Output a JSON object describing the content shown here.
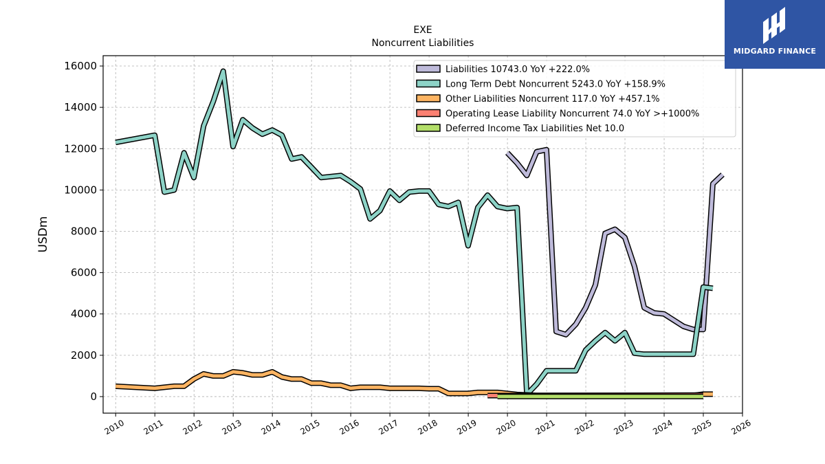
{
  "chart_data": {
    "type": "line",
    "title": "EXE",
    "subtitle": "Noncurrent  Liabilities",
    "ylabel": "USDm",
    "xlabel": "",
    "xlim": [
      2009.68,
      2026.0
    ],
    "ylim": [
      -800,
      16500
    ],
    "x_ticks": [
      "2010",
      "2011",
      "2012",
      "2013",
      "2014",
      "2015",
      "2016",
      "2017",
      "2018",
      "2019",
      "2020",
      "2021",
      "2022",
      "2023",
      "2024",
      "2025",
      "2026"
    ],
    "y_ticks": [
      "0",
      "2000",
      "4000",
      "6000",
      "8000",
      "10000",
      "12000",
      "14000",
      "16000"
    ],
    "grid": true,
    "legend_position": "top-right",
    "series": [
      {
        "name": "Liabilities",
        "legend": "Liabilities  10743.0 YoY +222.0%",
        "color": "#bebada",
        "points": [
          [
            "2019-12-31",
            11800
          ],
          [
            "2020-03-31",
            11300
          ],
          [
            "2020-06-30",
            10700
          ],
          [
            "2020-09-30",
            11850
          ],
          [
            "2020-12-31",
            11950
          ],
          [
            "2021-03-31",
            3150
          ],
          [
            "2021-06-30",
            3000
          ],
          [
            "2021-09-30",
            3500
          ],
          [
            "2021-12-31",
            4300
          ],
          [
            "2022-03-31",
            5400
          ],
          [
            "2022-06-30",
            7900
          ],
          [
            "2022-09-30",
            8100
          ],
          [
            "2022-12-31",
            7700
          ],
          [
            "2023-03-31",
            6300
          ],
          [
            "2023-06-30",
            4300
          ],
          [
            "2023-09-30",
            4050
          ],
          [
            "2023-12-31",
            4000
          ],
          [
            "2024-03-31",
            3700
          ],
          [
            "2024-06-30",
            3400
          ],
          [
            "2024-09-30",
            3250
          ],
          [
            "2024-12-31",
            3250
          ],
          [
            "2025-03-31",
            10300
          ],
          [
            "2025-06-30",
            10743
          ]
        ]
      },
      {
        "name": "Long Term Debt Noncurrent",
        "legend": "Long Term Debt Noncurrent  5243.0 YoY +158.9%",
        "color": "#8dd3c7",
        "points": [
          [
            "2009-12-31",
            12300
          ],
          [
            "2010-12-31",
            12650
          ],
          [
            "2011-03-31",
            9900
          ],
          [
            "2011-06-30",
            10000
          ],
          [
            "2011-09-30",
            11800
          ],
          [
            "2011-12-31",
            10600
          ],
          [
            "2012-03-31",
            13100
          ],
          [
            "2012-06-30",
            14300
          ],
          [
            "2012-09-30",
            15750
          ],
          [
            "2012-12-31",
            12100
          ],
          [
            "2013-03-31",
            13400
          ],
          [
            "2013-06-30",
            13000
          ],
          [
            "2013-09-30",
            12700
          ],
          [
            "2013-12-31",
            12900
          ],
          [
            "2014-03-31",
            12650
          ],
          [
            "2014-06-30",
            11500
          ],
          [
            "2014-09-30",
            11600
          ],
          [
            "2014-12-31",
            11100
          ],
          [
            "2015-03-31",
            10600
          ],
          [
            "2015-06-30",
            10650
          ],
          [
            "2015-09-30",
            10700
          ],
          [
            "2015-12-31",
            10400
          ],
          [
            "2016-03-31",
            10050
          ],
          [
            "2016-06-30",
            8600
          ],
          [
            "2016-09-30",
            9000
          ],
          [
            "2016-12-31",
            9950
          ],
          [
            "2017-03-31",
            9500
          ],
          [
            "2017-06-30",
            9900
          ],
          [
            "2017-09-30",
            9950
          ],
          [
            "2017-12-31",
            9950
          ],
          [
            "2018-03-31",
            9300
          ],
          [
            "2018-06-30",
            9200
          ],
          [
            "2018-09-30",
            9400
          ],
          [
            "2018-12-31",
            7300
          ],
          [
            "2019-03-31",
            9150
          ],
          [
            "2019-06-30",
            9750
          ],
          [
            "2019-09-30",
            9200
          ],
          [
            "2019-12-31",
            9100
          ],
          [
            "2020-03-31",
            9150
          ],
          [
            "2020-06-30",
            100
          ],
          [
            "2020-09-30",
            600
          ],
          [
            "2020-12-31",
            1250
          ],
          [
            "2021-03-31",
            1250
          ],
          [
            "2021-06-30",
            1250
          ],
          [
            "2021-09-30",
            1250
          ],
          [
            "2021-12-31",
            2250
          ],
          [
            "2022-03-31",
            2700
          ],
          [
            "2022-06-30",
            3100
          ],
          [
            "2022-09-30",
            2700
          ],
          [
            "2022-12-31",
            3100
          ],
          [
            "2023-03-31",
            2100
          ],
          [
            "2023-06-30",
            2050
          ],
          [
            "2023-09-30",
            2050
          ],
          [
            "2023-12-31",
            2050
          ],
          [
            "2024-03-31",
            2050
          ],
          [
            "2024-06-30",
            2050
          ],
          [
            "2024-09-30",
            2050
          ],
          [
            "2024-12-31",
            5300
          ],
          [
            "2025-03-31",
            5243
          ]
        ]
      },
      {
        "name": "Other Liabilities Noncurrent",
        "legend": "Other Liabilities Noncurrent  117.0 YoY +457.1%",
        "color": "#fdb462",
        "points": [
          [
            "2009-12-31",
            500
          ],
          [
            "2010-12-31",
            400
          ],
          [
            "2011-03-31",
            450
          ],
          [
            "2011-06-30",
            500
          ],
          [
            "2011-09-30",
            500
          ],
          [
            "2011-12-31",
            850
          ],
          [
            "2012-03-31",
            1100
          ],
          [
            "2012-06-30",
            1000
          ],
          [
            "2012-09-30",
            1000
          ],
          [
            "2012-12-31",
            1200
          ],
          [
            "2013-03-31",
            1150
          ],
          [
            "2013-06-30",
            1050
          ],
          [
            "2013-09-30",
            1050
          ],
          [
            "2013-12-31",
            1200
          ],
          [
            "2014-03-31",
            950
          ],
          [
            "2014-06-30",
            850
          ],
          [
            "2014-09-30",
            850
          ],
          [
            "2014-12-31",
            650
          ],
          [
            "2015-03-31",
            650
          ],
          [
            "2015-06-30",
            550
          ],
          [
            "2015-09-30",
            550
          ],
          [
            "2015-12-31",
            400
          ],
          [
            "2016-03-31",
            450
          ],
          [
            "2016-06-30",
            450
          ],
          [
            "2016-09-30",
            450
          ],
          [
            "2016-12-31",
            400
          ],
          [
            "2017-03-31",
            400
          ],
          [
            "2017-06-30",
            400
          ],
          [
            "2017-09-30",
            400
          ],
          [
            "2017-12-31",
            380
          ],
          [
            "2018-03-31",
            380
          ],
          [
            "2018-06-30",
            150
          ],
          [
            "2018-09-30",
            150
          ],
          [
            "2018-12-31",
            150
          ],
          [
            "2019-03-31",
            200
          ],
          [
            "2019-06-30",
            200
          ],
          [
            "2019-09-30",
            200
          ],
          [
            "2019-12-31",
            150
          ],
          [
            "2020-03-31",
            100
          ],
          [
            "2020-06-30",
            80
          ],
          [
            "2020-09-30",
            60
          ],
          [
            "2020-12-31",
            60
          ],
          [
            "2021-03-31",
            60
          ],
          [
            "2021-06-30",
            60
          ],
          [
            "2021-09-30",
            60
          ],
          [
            "2021-12-31",
            60
          ],
          [
            "2022-03-31",
            60
          ],
          [
            "2022-06-30",
            60
          ],
          [
            "2022-09-30",
            60
          ],
          [
            "2022-12-31",
            60
          ],
          [
            "2023-03-31",
            60
          ],
          [
            "2023-06-30",
            60
          ],
          [
            "2023-09-30",
            60
          ],
          [
            "2023-12-31",
            60
          ],
          [
            "2024-03-31",
            60
          ],
          [
            "2024-06-30",
            60
          ],
          [
            "2024-09-30",
            60
          ],
          [
            "2024-12-31",
            117
          ],
          [
            "2025-03-31",
            117
          ]
        ]
      },
      {
        "name": "Operating Lease Liability Noncurrent",
        "legend": "Operating Lease Liability Noncurrent  74.0 YoY >+1000%",
        "color": "#fb8072",
        "points": [
          [
            "2019-06-30",
            50
          ],
          [
            "2019-09-30",
            50
          ],
          [
            "2019-12-31",
            50
          ],
          [
            "2024-12-31",
            74
          ]
        ]
      },
      {
        "name": "Deferred Income Tax Liabilities Net",
        "legend": "Deferred Income Tax Liabilities Net  10.0",
        "color": "#b3de69",
        "points": [
          [
            "2019-09-30",
            10
          ],
          [
            "2024-12-31",
            10
          ]
        ]
      }
    ]
  },
  "logo": {
    "text": "MIDGARD FINANCE",
    "bg_color": "#2f55a4"
  }
}
